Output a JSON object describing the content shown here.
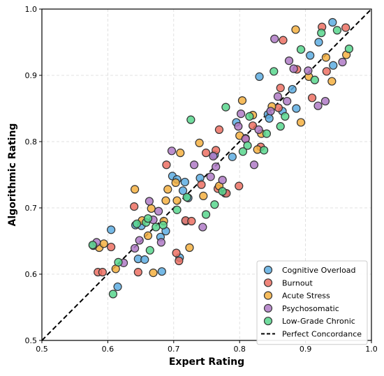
{
  "chart_data": {
    "type": "scatter",
    "title": "",
    "xlabel": "Expert Rating",
    "ylabel": "Algorithmic Rating",
    "xlim": [
      0.5,
      1.0
    ],
    "ylim": [
      0.5,
      1.0
    ],
    "xticks": [
      "0.5",
      "0.6",
      "0.7",
      "0.8",
      "0.9",
      "1.0"
    ],
    "yticks": [
      "0.5",
      "0.6",
      "0.7",
      "0.8",
      "0.9",
      "1.0"
    ],
    "grid": true,
    "legend_position": "bottom-right",
    "reference_line": {
      "label": "Perfect Concordance",
      "style": "dashed",
      "color": "#000000",
      "from": [
        0.5,
        0.5
      ],
      "to": [
        1.0,
        1.0
      ]
    },
    "series": [
      {
        "name": "Cognitive Overload",
        "color": "#5DADE2",
        "points": [
          [
            0.605,
            0.667
          ],
          [
            0.615,
            0.581
          ],
          [
            0.642,
            0.674
          ],
          [
            0.646,
            0.623
          ],
          [
            0.651,
            0.673
          ],
          [
            0.656,
            0.622
          ],
          [
            0.68,
            0.656
          ],
          [
            0.682,
            0.604
          ],
          [
            0.688,
            0.665
          ],
          [
            0.698,
            0.748
          ],
          [
            0.705,
            0.743
          ],
          [
            0.709,
            0.625
          ],
          [
            0.714,
            0.726
          ],
          [
            0.717,
            0.739
          ],
          [
            0.718,
            0.68
          ],
          [
            0.722,
            0.715
          ],
          [
            0.74,
            0.745
          ],
          [
            0.762,
            0.78
          ],
          [
            0.778,
            0.722
          ],
          [
            0.789,
            0.777
          ],
          [
            0.795,
            0.829
          ],
          [
            0.83,
            0.898
          ],
          [
            0.843,
            0.841
          ],
          [
            0.845,
            0.835
          ],
          [
            0.865,
            0.846
          ],
          [
            0.88,
            0.879
          ],
          [
            0.886,
            0.85
          ],
          [
            0.907,
            0.93
          ],
          [
            0.92,
            0.95
          ],
          [
            0.941,
            0.98
          ],
          [
            0.942,
            0.915
          ]
        ]
      },
      {
        "name": "Burnout",
        "color": "#EC7063",
        "points": [
          [
            0.585,
            0.603
          ],
          [
            0.592,
            0.603
          ],
          [
            0.605,
            0.641
          ],
          [
            0.64,
            0.702
          ],
          [
            0.646,
            0.603
          ],
          [
            0.689,
            0.765
          ],
          [
            0.704,
            0.632
          ],
          [
            0.708,
            0.62
          ],
          [
            0.718,
            0.681
          ],
          [
            0.727,
            0.68
          ],
          [
            0.742,
            0.735
          ],
          [
            0.749,
            0.783
          ],
          [
            0.764,
            0.787
          ],
          [
            0.767,
            0.729
          ],
          [
            0.769,
            0.818
          ],
          [
            0.78,
            0.722
          ],
          [
            0.799,
            0.733
          ],
          [
            0.809,
            0.805
          ],
          [
            0.82,
            0.824
          ],
          [
            0.832,
            0.792
          ],
          [
            0.859,
            0.851
          ],
          [
            0.862,
            0.881
          ],
          [
            0.866,
            0.953
          ],
          [
            0.887,
            0.909
          ],
          [
            0.91,
            0.866
          ],
          [
            0.925,
            0.973
          ],
          [
            0.932,
            0.906
          ],
          [
            0.961,
            0.972
          ]
        ]
      },
      {
        "name": "Acute Stress",
        "color": "#F5B041",
        "points": [
          [
            0.587,
            0.64
          ],
          [
            0.594,
            0.646
          ],
          [
            0.612,
            0.608
          ],
          [
            0.641,
            0.728
          ],
          [
            0.652,
            0.681
          ],
          [
            0.661,
            0.658
          ],
          [
            0.666,
            0.699
          ],
          [
            0.669,
            0.602
          ],
          [
            0.685,
            0.68
          ],
          [
            0.688,
            0.711
          ],
          [
            0.691,
            0.728
          ],
          [
            0.703,
            0.738
          ],
          [
            0.705,
            0.711
          ],
          [
            0.71,
            0.783
          ],
          [
            0.724,
            0.64
          ],
          [
            0.739,
            0.798
          ],
          [
            0.745,
            0.718
          ],
          [
            0.769,
            0.733
          ],
          [
            0.8,
            0.809
          ],
          [
            0.804,
            0.862
          ],
          [
            0.82,
            0.84
          ],
          [
            0.827,
            0.788
          ],
          [
            0.833,
            0.812
          ],
          [
            0.849,
            0.853
          ],
          [
            0.885,
            0.969
          ],
          [
            0.893,
            0.829
          ],
          [
            0.905,
            0.898
          ],
          [
            0.931,
            0.927
          ],
          [
            0.94,
            0.891
          ],
          [
            0.962,
            0.931
          ]
        ]
      },
      {
        "name": "Psychosomatic",
        "color": "#AF7AC5",
        "points": [
          [
            0.578,
            0.643
          ],
          [
            0.583,
            0.648
          ],
          [
            0.624,
            0.617
          ],
          [
            0.641,
            0.639
          ],
          [
            0.648,
            0.651
          ],
          [
            0.663,
            0.71
          ],
          [
            0.669,
            0.682
          ],
          [
            0.677,
            0.695
          ],
          [
            0.681,
            0.648
          ],
          [
            0.697,
            0.786
          ],
          [
            0.731,
            0.765
          ],
          [
            0.744,
            0.671
          ],
          [
            0.756,
            0.747
          ],
          [
            0.76,
            0.778
          ],
          [
            0.764,
            0.762
          ],
          [
            0.774,
            0.742
          ],
          [
            0.798,
            0.823
          ],
          [
            0.802,
            0.842
          ],
          [
            0.809,
            0.804
          ],
          [
            0.822,
            0.765
          ],
          [
            0.829,
            0.818
          ],
          [
            0.847,
            0.846
          ],
          [
            0.853,
            0.955
          ],
          [
            0.858,
            0.868
          ],
          [
            0.872,
            0.861
          ],
          [
            0.875,
            0.922
          ],
          [
            0.882,
            0.91
          ],
          [
            0.904,
            0.907
          ],
          [
            0.919,
            0.854
          ],
          [
            0.93,
            0.861
          ],
          [
            0.956,
            0.92
          ]
        ]
      },
      {
        "name": "Low-Grade Chronic",
        "color": "#58D68D",
        "points": [
          [
            0.577,
            0.644
          ],
          [
            0.608,
            0.57
          ],
          [
            0.616,
            0.618
          ],
          [
            0.644,
            0.676
          ],
          [
            0.658,
            0.678
          ],
          [
            0.661,
            0.684
          ],
          [
            0.664,
            0.636
          ],
          [
            0.673,
            0.671
          ],
          [
            0.684,
            0.674
          ],
          [
            0.705,
            0.697
          ],
          [
            0.72,
            0.716
          ],
          [
            0.726,
            0.833
          ],
          [
            0.749,
            0.69
          ],
          [
            0.762,
            0.705
          ],
          [
            0.774,
            0.725
          ],
          [
            0.779,
            0.852
          ],
          [
            0.805,
            0.785
          ],
          [
            0.812,
            0.794
          ],
          [
            0.815,
            0.838
          ],
          [
            0.837,
            0.787
          ],
          [
            0.841,
            0.812
          ],
          [
            0.852,
            0.906
          ],
          [
            0.862,
            0.823
          ],
          [
            0.869,
            0.838
          ],
          [
            0.893,
            0.939
          ],
          [
            0.914,
            0.893
          ],
          [
            0.924,
            0.964
          ],
          [
            0.948,
            0.968
          ],
          [
            0.966,
            0.94
          ]
        ]
      }
    ]
  },
  "legend": [
    {
      "label": "Cognitive Overload",
      "kind": "marker",
      "color": "#5DADE2"
    },
    {
      "label": "Burnout",
      "kind": "marker",
      "color": "#EC7063"
    },
    {
      "label": "Acute Stress",
      "kind": "marker",
      "color": "#F5B041"
    },
    {
      "label": "Psychosomatic",
      "kind": "marker",
      "color": "#AF7AC5"
    },
    {
      "label": "Low-Grade Chronic",
      "kind": "marker",
      "color": "#58D68D"
    },
    {
      "label": "Perfect Concordance",
      "kind": "dashed-line",
      "color": "#000000"
    }
  ]
}
